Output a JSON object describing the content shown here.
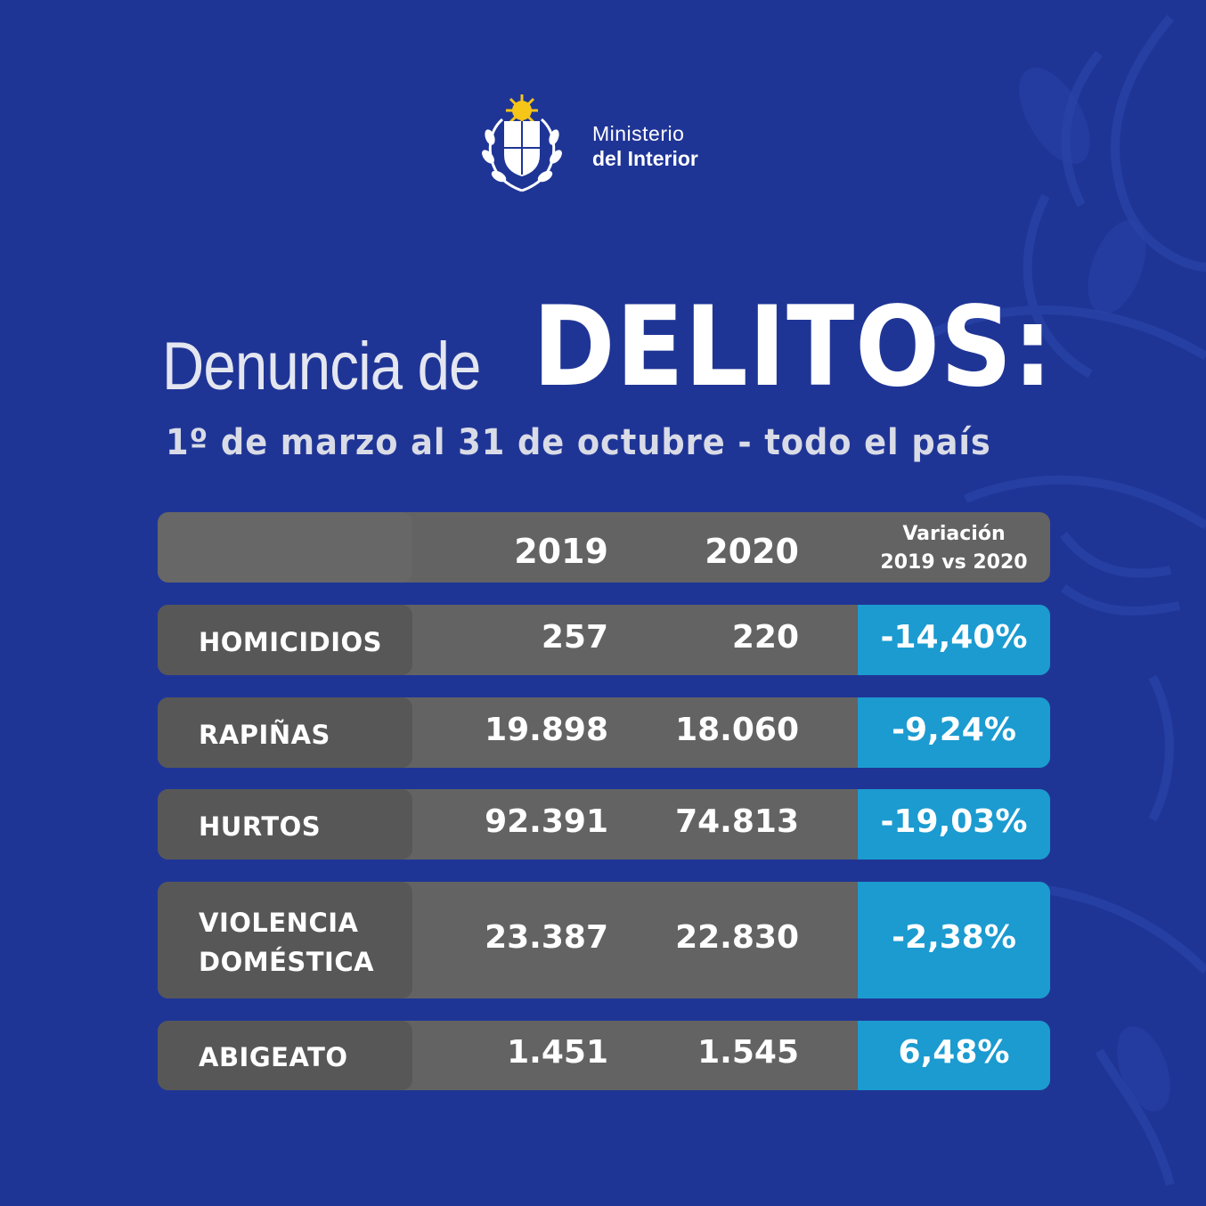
{
  "brand": {
    "line1": "Ministerio",
    "line2": "del Interior",
    "colors": {
      "background": "#1f3596",
      "accent": "#1b9bd0",
      "row": "#636363",
      "label": "#575757",
      "sun": "#f5c518"
    }
  },
  "title": {
    "light": "Denuncia de",
    "bold": "DELITOS:",
    "subtitle": "1º de marzo al 31 de octubre - todo el país"
  },
  "chart_data": {
    "type": "table",
    "columns": [
      "",
      "2019",
      "2020",
      "Variación 2019 vs 2020"
    ],
    "header": {
      "year1": "2019",
      "year2": "2020",
      "variation_line1": "Variación",
      "variation_line2": "2019 vs 2020"
    },
    "rows": [
      {
        "category": [
          "HOMICIDIOS"
        ],
        "v2019": "257",
        "v2020": "220",
        "variation": "-14,40%"
      },
      {
        "category": [
          "RAPIÑAS"
        ],
        "v2019": "19.898",
        "v2020": "18.060",
        "variation": "-9,24%"
      },
      {
        "category": [
          "HURTOS"
        ],
        "v2019": "92.391",
        "v2020": "74.813",
        "variation": "-19,03%"
      },
      {
        "category": [
          "VIOLENCIA",
          "DOMÉSTICA"
        ],
        "v2019": "23.387",
        "v2020": "22.830",
        "variation": "-2,38%"
      },
      {
        "category": [
          "ABIGEATO"
        ],
        "v2019": "1.451",
        "v2020": "1.545",
        "variation": "6,48%"
      }
    ]
  }
}
